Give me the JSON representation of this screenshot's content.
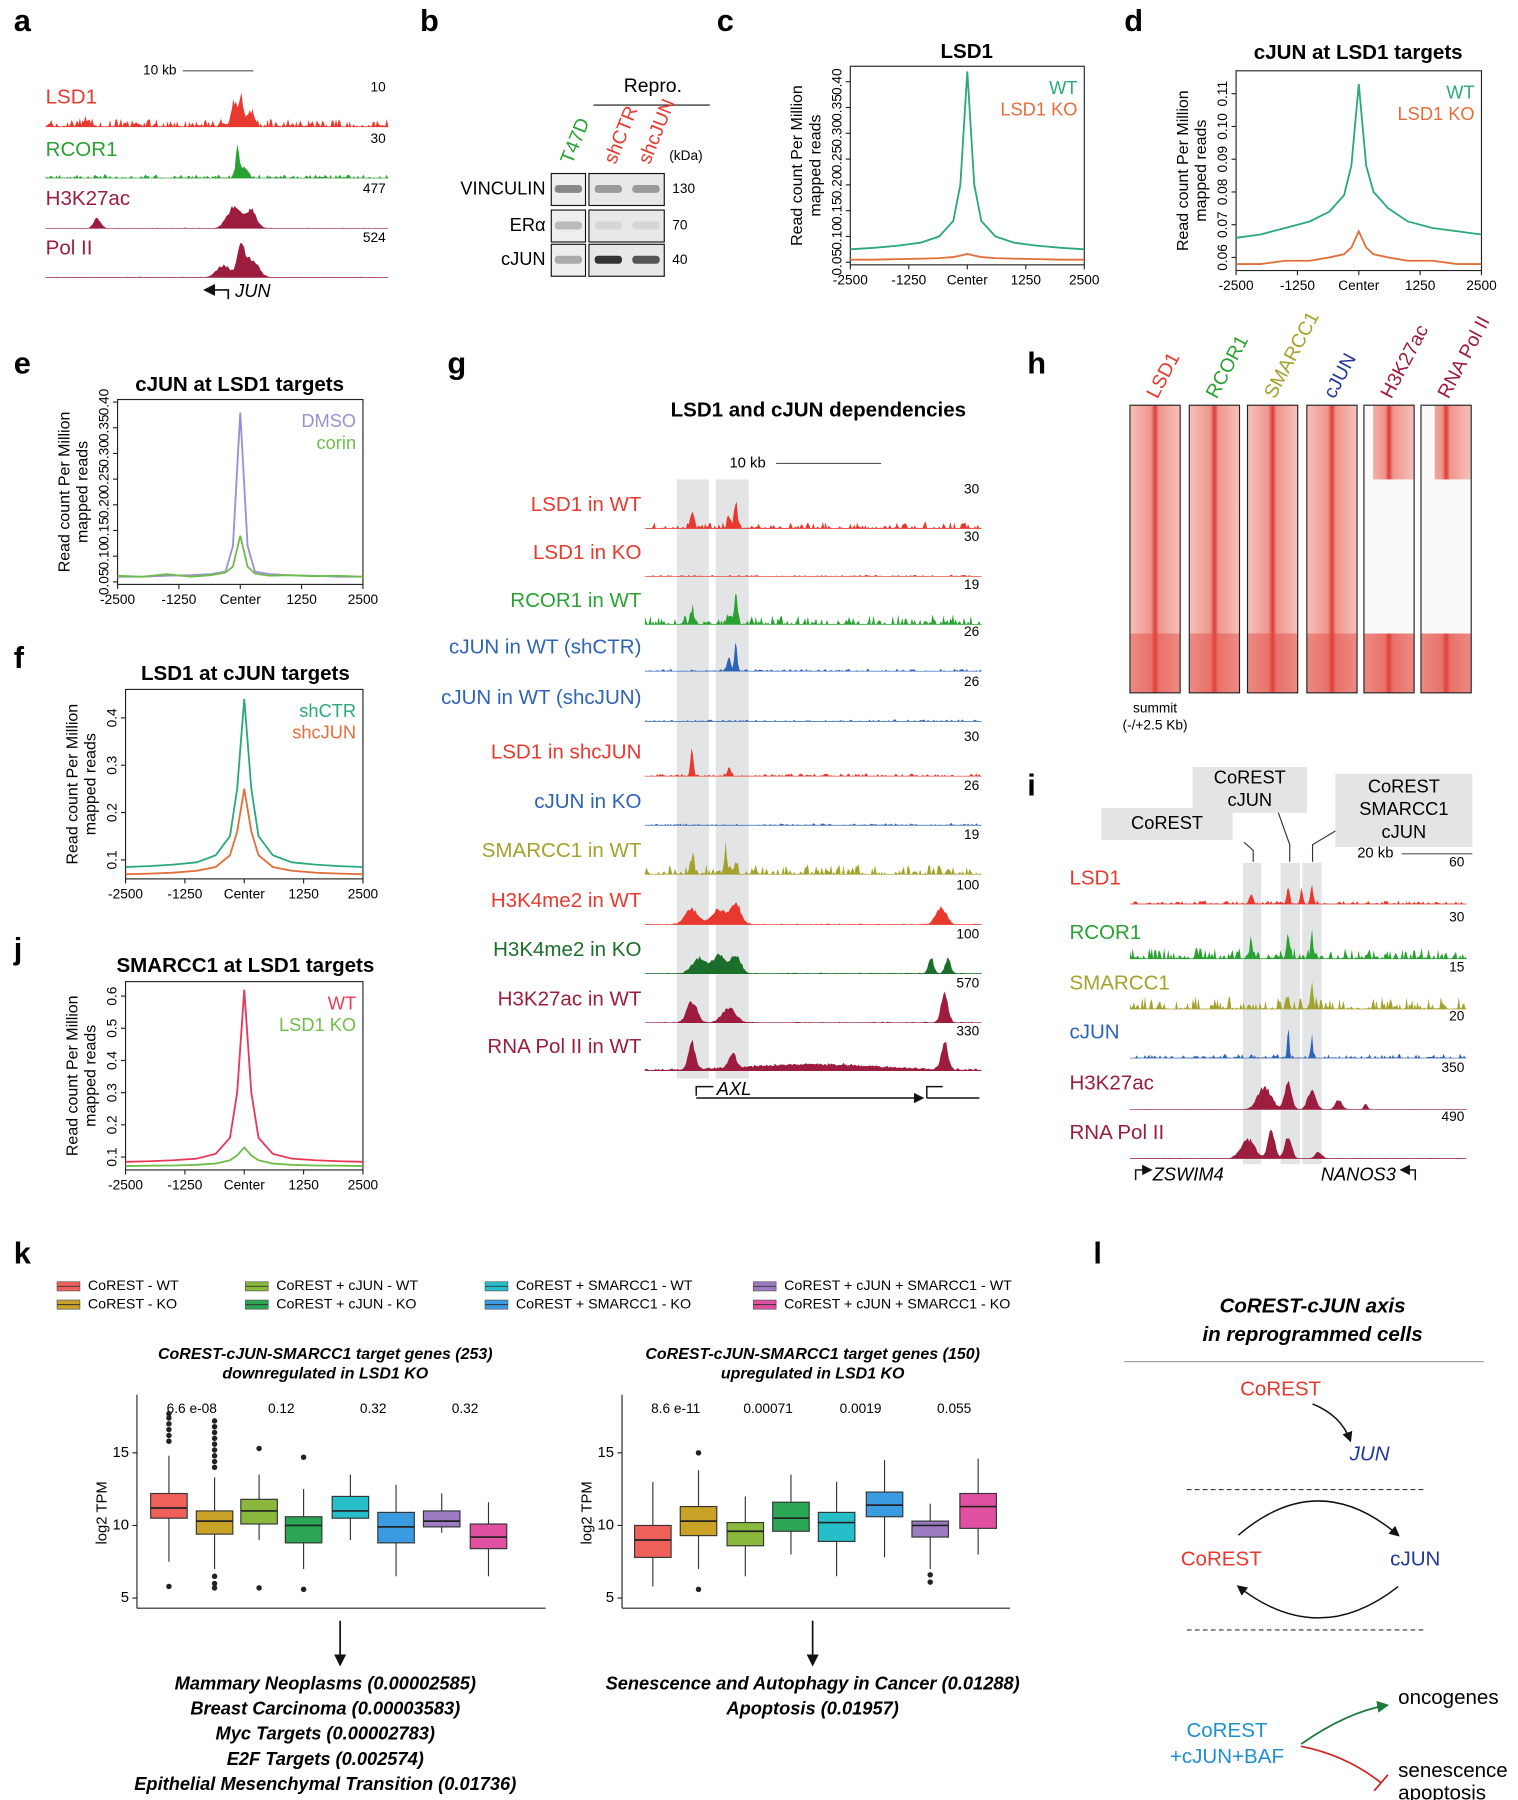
{
  "chart_data": [
    {
      "type": "line",
      "letter": "c",
      "title": [
        "LSD1"
      ],
      "ylabel": [
        "Read count Per Million",
        "mapped reads"
      ],
      "x": [
        -2500,
        -2000,
        -1500,
        -1000,
        -600,
        -300,
        -150,
        0,
        150,
        300,
        600,
        1000,
        1500,
        2000,
        2500
      ],
      "xlim": [
        -2500,
        2500
      ],
      "xticks": [
        -2500,
        -1250,
        {
          "value": 0,
          "label": "Center"
        },
        1250,
        2500
      ],
      "ylim": [
        0.045,
        0.43
      ],
      "yticks": [
        0.05,
        {
          "value": 0.1,
          "label": "0.10"
        },
        0.15,
        {
          "value": 0.2,
          "label": "0.20"
        },
        0.25,
        {
          "value": 0.3,
          "label": "0.30"
        },
        0.35,
        {
          "value": 0.4,
          "label": "0.40"
        }
      ],
      "series": [
        {
          "name": "WT",
          "color": "#2aa97a",
          "values": [
            0.075,
            0.078,
            0.082,
            0.088,
            0.1,
            0.13,
            0.2,
            0.42,
            0.2,
            0.13,
            0.1,
            0.088,
            0.082,
            0.078,
            0.075
          ]
        },
        {
          "name": "LSD1 KO",
          "color": "#e26f3a",
          "values": [
            0.055,
            0.055,
            0.056,
            0.057,
            0.058,
            0.06,
            0.063,
            0.066,
            0.063,
            0.06,
            0.058,
            0.057,
            0.056,
            0.055,
            0.055
          ]
        }
      ]
    },
    {
      "type": "line",
      "letter": "d",
      "title": [
        "cJUN at LSD1 targets"
      ],
      "ylabel": [
        "Read count Per Million",
        "mapped reads"
      ],
      "x": [
        -2500,
        -2000,
        -1500,
        -1000,
        -600,
        -300,
        -150,
        0,
        150,
        300,
        600,
        1000,
        1500,
        2000,
        2500
      ],
      "xlim": [
        -2500,
        2500
      ],
      "xticks": [
        -2500,
        -1250,
        {
          "value": 0,
          "label": "Center"
        },
        1250,
        2500
      ],
      "ylim": [
        0.056,
        0.117
      ],
      "yticks": [
        0.06,
        0.07,
        0.08,
        0.09,
        {
          "value": 0.1,
          "label": "0.10"
        },
        0.11
      ],
      "series": [
        {
          "name": "WT",
          "color": "#2aa97a",
          "values": [
            0.066,
            0.067,
            0.069,
            0.071,
            0.074,
            0.079,
            0.088,
            0.113,
            0.088,
            0.08,
            0.075,
            0.071,
            0.069,
            0.068,
            0.067
          ]
        },
        {
          "name": "LSD1 KO",
          "color": "#e26f3a",
          "values": [
            0.058,
            0.058,
            0.059,
            0.059,
            0.06,
            0.061,
            0.063,
            0.068,
            0.063,
            0.061,
            0.06,
            0.059,
            0.059,
            0.058,
            0.058
          ]
        }
      ]
    },
    {
      "type": "line",
      "letter": "e",
      "title": [
        "cJUN at LSD1 targets"
      ],
      "ylabel": [
        "Read count Per Million",
        "mapped reads"
      ],
      "x": [
        -2500,
        -2000,
        -1500,
        -1000,
        -600,
        -300,
        -150,
        0,
        150,
        300,
        600,
        1000,
        1500,
        2000,
        2500
      ],
      "xlim": [
        -2500,
        2500
      ],
      "xticks": [
        -2500,
        -1250,
        {
          "value": 0,
          "label": "Center"
        },
        1250,
        2500
      ],
      "ylim": [
        0.045,
        0.405
      ],
      "yticks": [
        0.05,
        {
          "value": 0.1,
          "label": "0.10"
        },
        0.15,
        {
          "value": 0.2,
          "label": "0.20"
        },
        0.25,
        {
          "value": 0.3,
          "label": "0.30"
        },
        0.35,
        {
          "value": 0.4,
          "label": "0.40"
        }
      ],
      "series": [
        {
          "name": "DMSO",
          "color": "#9b8fd4",
          "values": [
            0.06,
            0.06,
            0.062,
            0.063,
            0.065,
            0.07,
            0.12,
            0.38,
            0.12,
            0.07,
            0.065,
            0.063,
            0.062,
            0.06,
            0.06
          ]
        },
        {
          "name": "corin",
          "color": "#6fbe4a",
          "values": [
            0.062,
            0.06,
            0.065,
            0.06,
            0.063,
            0.068,
            0.08,
            0.14,
            0.08,
            0.066,
            0.062,
            0.063,
            0.061,
            0.062,
            0.06
          ]
        }
      ]
    },
    {
      "type": "line",
      "letter": "f",
      "title": [
        "LSD1 at cJUN targets"
      ],
      "ylabel": [
        "Read count Per Million",
        "mapped reads"
      ],
      "x": [
        -2500,
        -2000,
        -1500,
        -1000,
        -600,
        -300,
        -150,
        0,
        150,
        300,
        600,
        1000,
        1500,
        2000,
        2500
      ],
      "xlim": [
        -2500,
        2500
      ],
      "xticks": [
        -2500,
        -1250,
        {
          "value": 0,
          "label": "Center"
        },
        1250,
        2500
      ],
      "ylim": [
        0.06,
        0.46
      ],
      "yticks": [
        0.1,
        0.2,
        0.3,
        0.4
      ],
      "series": [
        {
          "name": "shCTR",
          "color": "#2aa97a",
          "values": [
            0.085,
            0.087,
            0.09,
            0.095,
            0.11,
            0.15,
            0.25,
            0.44,
            0.25,
            0.15,
            0.11,
            0.095,
            0.09,
            0.087,
            0.085
          ]
        },
        {
          "name": "shcJUN",
          "color": "#e26f3a",
          "values": [
            0.07,
            0.071,
            0.073,
            0.077,
            0.085,
            0.11,
            0.16,
            0.25,
            0.16,
            0.11,
            0.085,
            0.077,
            0.073,
            0.071,
            0.07
          ]
        }
      ]
    },
    {
      "type": "line",
      "letter": "j",
      "title": [
        "SMARCC1 at LSD1 targets"
      ],
      "ylabel": [
        "Read count Per Million",
        "mapped reads"
      ],
      "x": [
        -2500,
        -2000,
        -1500,
        -1000,
        -600,
        -300,
        -150,
        0,
        150,
        300,
        600,
        1000,
        1500,
        2000,
        2500
      ],
      "xlim": [
        -2500,
        2500
      ],
      "xticks": [
        -2500,
        -1250,
        {
          "value": 0,
          "label": "Center"
        },
        1250,
        2500
      ],
      "ylim": [
        0.06,
        0.645
      ],
      "yticks": [
        0.1,
        0.2,
        0.3,
        0.4,
        0.5,
        0.6
      ],
      "series": [
        {
          "name": "WT",
          "color": "#e8385a",
          "values": [
            0.085,
            0.087,
            0.09,
            0.095,
            0.11,
            0.16,
            0.3,
            0.62,
            0.3,
            0.16,
            0.11,
            0.095,
            0.09,
            0.087,
            0.085
          ]
        },
        {
          "name": "LSD1 KO",
          "color": "#6fbe4a",
          "values": [
            0.072,
            0.073,
            0.074,
            0.076,
            0.08,
            0.09,
            0.105,
            0.13,
            0.105,
            0.09,
            0.08,
            0.076,
            0.074,
            0.073,
            0.072
          ]
        }
      ]
    },
    {
      "type": "box",
      "title": [
        "CoREST-cJUN-SMARCC1 target genes (253)",
        "downregulated in LSD1 KO"
      ],
      "ylabel": "log2 TPM",
      "ylim": [
        4.3,
        19
      ],
      "yticks": [
        5,
        10,
        15
      ],
      "pvalues": [
        "6.6 e-08",
        "0.12",
        "0.32",
        "0.32"
      ],
      "series": [
        {
          "name": "CoREST - WT",
          "color": "#f0605a",
          "whislo": 7.5,
          "q1": 10.5,
          "med": 11.2,
          "q3": 12.2,
          "whishi": 14.8,
          "outliers": [
            15.8,
            16.2,
            16.6,
            17,
            17.4,
            17.7,
            5.8
          ]
        },
        {
          "name": "CoREST - KO",
          "color": "#c9a227",
          "whislo": 7,
          "q1": 9.4,
          "med": 10.3,
          "q3": 11,
          "whishi": 13.3,
          "outliers": [
            14,
            14.4,
            14.8,
            15.2,
            15.6,
            16,
            16.4,
            16.8,
            17.2,
            6.5,
            6,
            5.7
          ]
        },
        {
          "name": "CoREST + cJUN - WT",
          "color": "#8ab83c",
          "whislo": 9,
          "q1": 10.1,
          "med": 11,
          "q3": 11.8,
          "whishi": 13.5,
          "outliers": [
            15.3,
            5.7
          ]
        },
        {
          "name": "CoREST + cJUN - KO",
          "color": "#2aa654",
          "whislo": 7,
          "q1": 8.8,
          "med": 10,
          "q3": 10.6,
          "whishi": 12.5,
          "outliers": [
            14.7,
            5.6
          ]
        },
        {
          "name": "CoREST + SMARCC1 - WT",
          "color": "#26bfc9",
          "whislo": 9,
          "q1": 10.5,
          "med": 11,
          "q3": 12,
          "whishi": 13.5,
          "outliers": []
        },
        {
          "name": "CoREST + SMARCC1 - KO",
          "color": "#3a9be0",
          "whislo": 6.5,
          "q1": 8.8,
          "med": 9.9,
          "q3": 10.9,
          "whishi": 12.8,
          "outliers": []
        },
        {
          "name": "CoREST + cJUN + SMARCC1 - WT",
          "color": "#9d7bc2",
          "whislo": 9.5,
          "q1": 9.9,
          "med": 10.3,
          "q3": 11,
          "whishi": 12.2,
          "outliers": []
        },
        {
          "name": "CoREST + cJUN + SMARCC1 - KO",
          "color": "#e04fa0",
          "whislo": 6.5,
          "q1": 8.4,
          "med": 9.2,
          "q3": 10.1,
          "whishi": 11.6,
          "outliers": []
        }
      ]
    },
    {
      "type": "box",
      "title": [
        "CoREST-cJUN-SMARCC1 target genes (150)",
        "upregulated in LSD1 KO"
      ],
      "ylabel": "log2 TPM",
      "ylim": [
        4.3,
        19
      ],
      "yticks": [
        5,
        10,
        15
      ],
      "pvalues": [
        "8.6 e-11",
        "0.00071",
        "0.0019",
        "0.055"
      ],
      "boxes": [
        {
          "whislo": 5.8,
          "q1": 7.8,
          "med": 9,
          "q3": 10,
          "whishi": 13,
          "outliers": []
        },
        {
          "whislo": 7,
          "q1": 9.3,
          "med": 10.3,
          "q3": 11.3,
          "whishi": 13.8,
          "outliers": [
            15,
            5.6
          ]
        },
        {
          "whislo": 6.5,
          "q1": 8.6,
          "med": 9.6,
          "q3": 10.2,
          "whishi": 12,
          "outliers": []
        },
        {
          "whislo": 8,
          "q1": 9.6,
          "med": 10.5,
          "q3": 11.6,
          "whishi": 13.5,
          "outliers": []
        },
        {
          "whislo": 6.5,
          "q1": 8.9,
          "med": 10.2,
          "q3": 10.9,
          "whishi": 13,
          "outliers": []
        },
        {
          "whislo": 7.8,
          "q1": 10.6,
          "med": 11.4,
          "q3": 12.3,
          "whishi": 14.5,
          "outliers": []
        },
        {
          "whislo": 7,
          "q1": 9.2,
          "med": 10,
          "q3": 10.3,
          "whishi": 11.5,
          "outliers": [
            6.6,
            6.1
          ]
        },
        {
          "whislo": 8,
          "q1": 9.8,
          "med": 11.3,
          "q3": 12.2,
          "whishi": 14.6,
          "outliers": []
        }
      ]
    }
  ],
  "panels": {
    "a": {
      "letter": "a",
      "scale": "10 kb",
      "gene": "JUN",
      "tracks": [
        {
          "label": "LSD1",
          "max": 10,
          "color": "#e8392f"
        },
        {
          "label": "RCOR1",
          "max": 30,
          "color": "#2aa233"
        },
        {
          "label": "H3K27ac",
          "max": 477,
          "color": "#9c1d3e"
        },
        {
          "label": "Pol II",
          "max": 524,
          "color": "#9c1d3e"
        }
      ]
    },
    "b": {
      "letter": "b",
      "group": "Repro.",
      "unit": "(kDa)",
      "lanes": [
        {
          "label": "T47D",
          "color": "#2aa233"
        },
        {
          "label": "shCTR",
          "color": "#e8392f"
        },
        {
          "label": "shcJUN",
          "color": "#e8392f"
        }
      ],
      "rows": [
        {
          "label": "VINCULIN",
          "kda": 130
        },
        {
          "label": "ERα",
          "kda": 70
        },
        {
          "label": "cJUN",
          "kda": 40
        }
      ]
    },
    "g": {
      "letter": "g",
      "title": "LSD1 and cJUN dependencies",
      "scale": "10 kb",
      "gene": "AXL",
      "tracks": [
        {
          "label": "LSD1 in WT",
          "max": 30,
          "color": "#e8392f"
        },
        {
          "label": "LSD1 in KO",
          "max": 30,
          "color": "#e8392f"
        },
        {
          "label": "RCOR1 in WT",
          "max": 19,
          "color": "#2aa233"
        },
        {
          "label": "cJUN in WT (shCTR)",
          "max": 26,
          "color": "#2e63b8"
        },
        {
          "label": "cJUN in WT (shcJUN)",
          "max": 26,
          "color": "#2e63b8"
        },
        {
          "label": "LSD1 in shcJUN",
          "max": 30,
          "color": "#e8392f"
        },
        {
          "label": "cJUN in KO",
          "max": 26,
          "color": "#2e63b8"
        },
        {
          "label": "SMARCC1 in WT",
          "max": 19,
          "color": "#a3a22b"
        },
        {
          "label": "H3K4me2 in WT",
          "max": 100,
          "color": "#e8392f"
        },
        {
          "label": "H3K4me2 in KO",
          "max": 100,
          "color": "#1c6e2b"
        },
        {
          "label": "H3K27ac in WT",
          "max": 570,
          "color": "#9c1d3e"
        },
        {
          "label": "RNA Pol II in WT",
          "max": 330,
          "color": "#9c1d3e"
        }
      ]
    },
    "h": {
      "letter": "h",
      "note": [
        "summit",
        "(-/+2.5 Kb)"
      ],
      "columns": [
        {
          "label": "LSD1",
          "color": "#e8392f"
        },
        {
          "label": "RCOR1",
          "color": "#2aa233"
        },
        {
          "label": "SMARCC1",
          "color": "#a3a22b"
        },
        {
          "label": "cJUN",
          "color": "#23399a"
        },
        {
          "label": "H3K27ac",
          "color": "#9c1d3e"
        },
        {
          "label": "RNA Pol II",
          "color": "#9c1d3e"
        }
      ]
    },
    "i": {
      "letter": "i",
      "scale": "20 kb",
      "genes": [
        "ZSWIM4",
        "NANOS3"
      ],
      "callouts": [
        [
          "CoREST"
        ],
        [
          "CoREST",
          "cJUN"
        ],
        [
          "CoREST",
          "SMARCC1",
          "cJUN"
        ]
      ],
      "tracks": [
        {
          "label": "LSD1",
          "max": 60,
          "color": "#e8392f"
        },
        {
          "label": "RCOR1",
          "max": 30,
          "color": "#2aa233"
        },
        {
          "label": "SMARCC1",
          "max": 15,
          "color": "#a3a22b"
        },
        {
          "label": "cJUN",
          "max": 20,
          "color": "#2e63b8"
        },
        {
          "label": "H3K27ac",
          "max": 350,
          "color": "#9c1d3e"
        },
        {
          "label": "RNA Pol II",
          "max": 490,
          "color": "#9c1d3e"
        }
      ]
    },
    "k": {
      "letter": "k",
      "enrichment": [
        [
          "Mammary Neoplasms (0.00002585)",
          "Breast Carcinoma (0.00003583)",
          "Myc Targets (0.00002783)",
          "E2F Targets (0.002574)",
          "Epithelial Mesenchymal Transition (0.01736)"
        ],
        [
          "Senescence and Autophagy in Cancer (0.01288)",
          "Apoptosis (0.01957)"
        ]
      ]
    },
    "l": {
      "letter": "l",
      "title": [
        "CoREST-cJUN axis",
        "in reprogrammed cells"
      ],
      "top": [
        "CoREST",
        "JUN"
      ],
      "loop": [
        "CoREST",
        "cJUN"
      ],
      "complex": [
        "CoREST",
        "+cJUN+BAF"
      ],
      "targets": [
        "oncogenes",
        "senescence",
        "apoptosis"
      ]
    }
  }
}
